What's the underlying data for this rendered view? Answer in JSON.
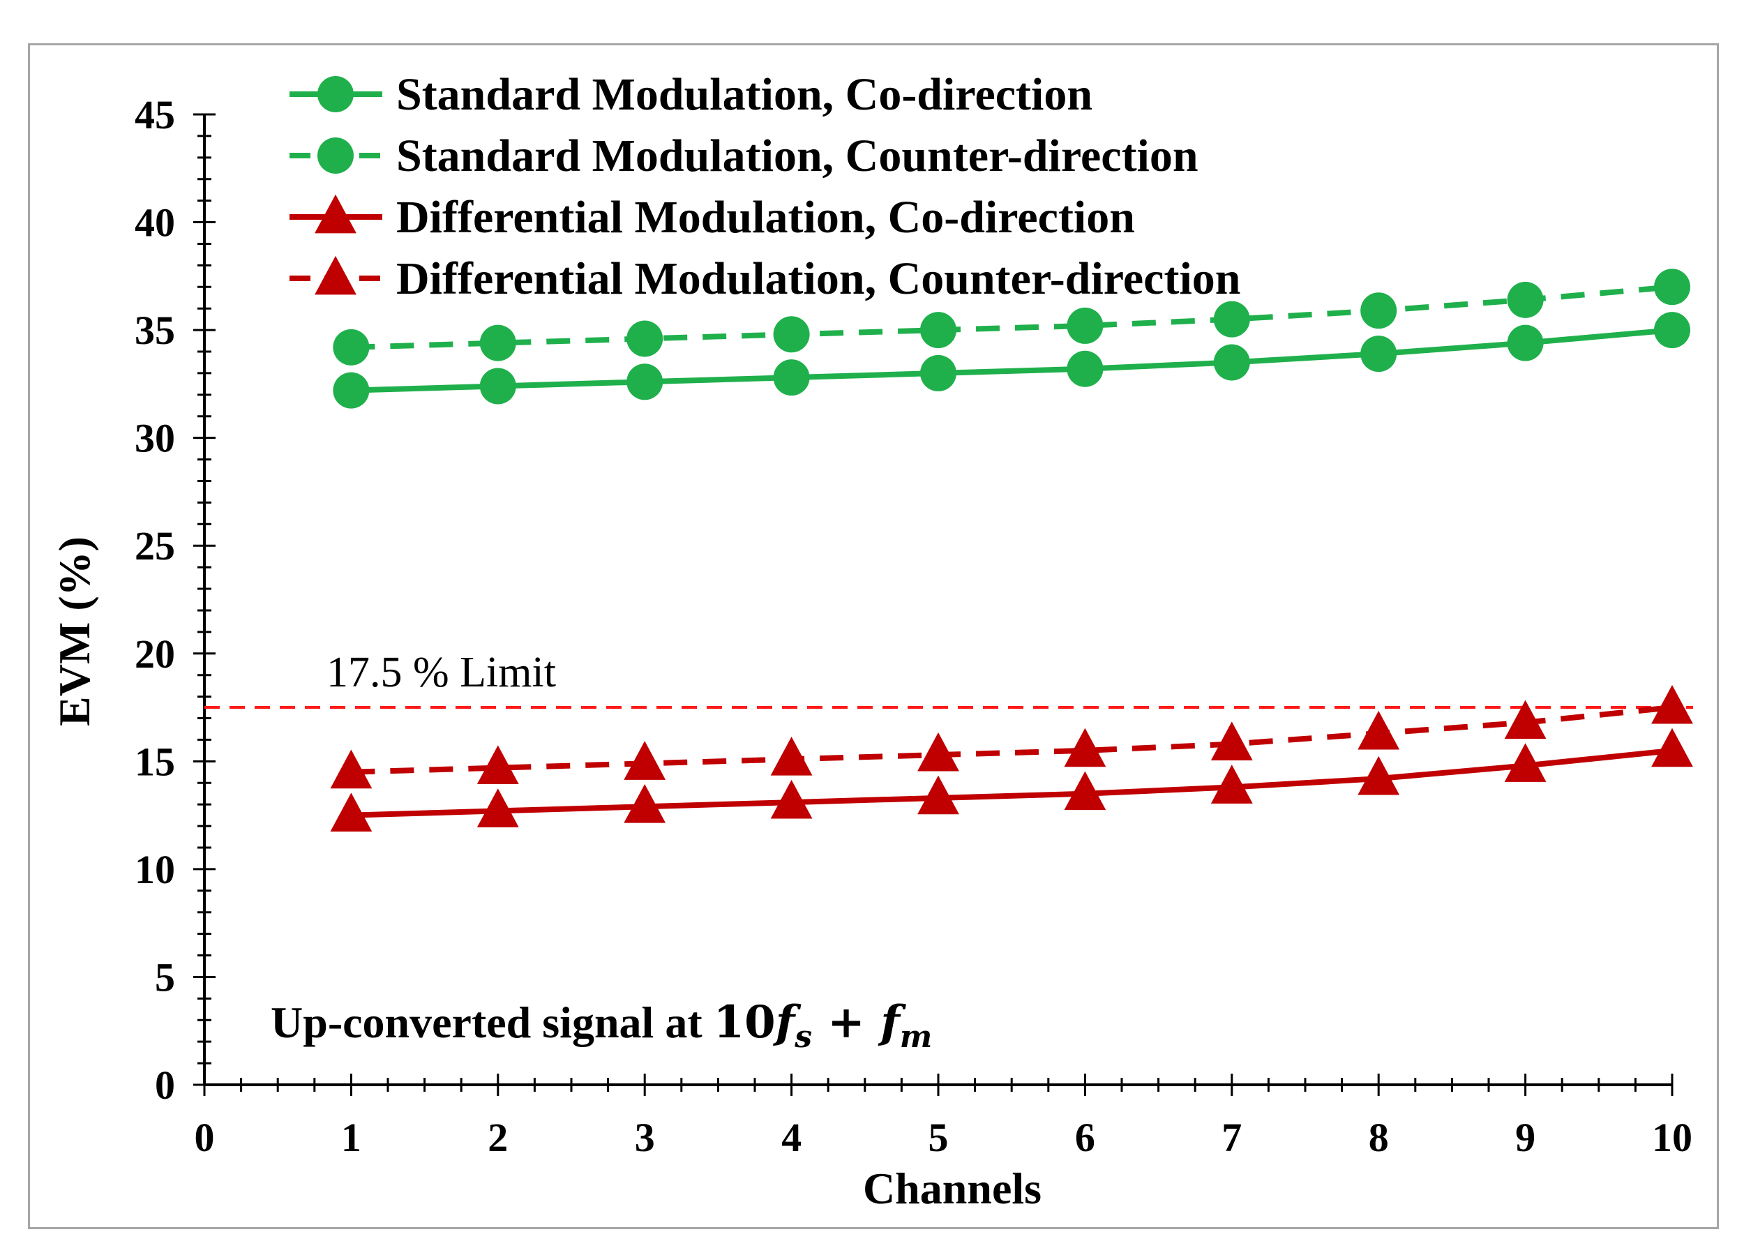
{
  "chart_data": {
    "type": "line",
    "xlabel": "Channels",
    "ylabel": "EVM (%)",
    "xlim": [
      0,
      10
    ],
    "ylim": [
      0,
      45
    ],
    "x_ticks": [
      0,
      1,
      2,
      3,
      4,
      5,
      6,
      7,
      8,
      9,
      10
    ],
    "y_ticks": [
      0,
      5,
      10,
      15,
      20,
      25,
      30,
      35,
      40,
      45
    ],
    "x_minor_step": 0.25,
    "y_minor_step": 1,
    "grid": false,
    "legend_position": "top",
    "x": [
      1,
      2,
      3,
      4,
      5,
      6,
      7,
      8,
      9,
      10
    ],
    "series": [
      {
        "name": "Standard Modulation, Co-direction",
        "color": "#1fb04c",
        "line_style": "solid",
        "marker": "circle",
        "values": [
          32.2,
          32.4,
          32.6,
          32.8,
          33.0,
          33.2,
          33.5,
          33.9,
          34.4,
          35.0
        ]
      },
      {
        "name": "Standard Modulation, Counter-direction",
        "color": "#1fb04c",
        "line_style": "dashed",
        "marker": "circle",
        "values": [
          34.2,
          34.4,
          34.6,
          34.8,
          35.0,
          35.2,
          35.5,
          35.9,
          36.4,
          37.0
        ]
      },
      {
        "name": "Differential Modulation, Co-direction",
        "color": "#c00000",
        "line_style": "solid",
        "marker": "triangle",
        "values": [
          12.5,
          12.7,
          12.9,
          13.1,
          13.3,
          13.5,
          13.8,
          14.2,
          14.8,
          15.5
        ]
      },
      {
        "name": "Differential Modulation, Counter-direction",
        "color": "#c00000",
        "line_style": "dashed",
        "marker": "triangle",
        "values": [
          14.5,
          14.7,
          14.9,
          15.1,
          15.3,
          15.5,
          15.8,
          16.3,
          16.8,
          17.5
        ]
      }
    ],
    "reference_line": {
      "y": 17.5,
      "label": "17.5 % Limit",
      "color": "#ff1a1a",
      "line_style": "dashed"
    },
    "annotation": {
      "prefix": "Up-converted signal at ",
      "coef": "10",
      "f1": "f",
      "sub1": "s",
      "op": " + ",
      "f2": "f",
      "sub2": "m"
    }
  }
}
